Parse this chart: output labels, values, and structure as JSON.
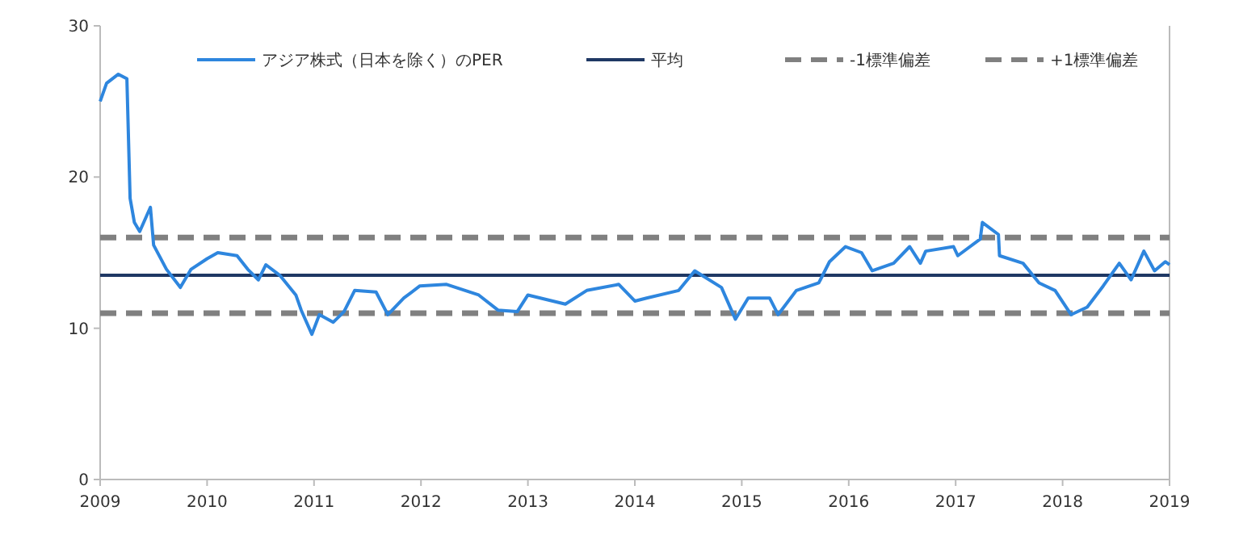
{
  "chart_data": {
    "type": "line",
    "legend": "top",
    "xlim": [
      2009,
      2019
    ],
    "xticks": [
      2009,
      2010,
      2011,
      2012,
      2013,
      2014,
      2015,
      2016,
      2017,
      2018,
      2019
    ],
    "ylim": [
      0,
      30
    ],
    "yticks": [
      0,
      10,
      20,
      30
    ],
    "grid": false,
    "series": [
      {
        "name": "アジア株式（日本を除く）のPER",
        "color": "#2e86de",
        "x": [
          2009.0,
          2009.06,
          2009.17,
          2009.25,
          2009.28,
          2009.32,
          2009.37,
          2009.47,
          2009.5,
          2009.62,
          2009.75,
          2009.85,
          2010.0,
          2010.1,
          2010.28,
          2010.38,
          2010.48,
          2010.55,
          2010.68,
          2010.83,
          2010.88,
          2010.98,
          2011.05,
          2011.18,
          2011.28,
          2011.38,
          2011.58,
          2011.69,
          2011.84,
          2011.99,
          2012.24,
          2012.54,
          2012.72,
          2012.9,
          2013.0,
          2013.35,
          2013.55,
          2013.85,
          2014.0,
          2014.11,
          2014.41,
          2014.56,
          2014.81,
          2014.94,
          2015.06,
          2015.26,
          2015.34,
          2015.51,
          2015.72,
          2015.82,
          2015.97,
          2016.12,
          2016.22,
          2016.42,
          2016.57,
          2016.67,
          2016.72,
          2016.98,
          2017.02,
          2017.23,
          2017.25,
          2017.4,
          2017.41,
          2017.63,
          2017.78,
          2017.93,
          2018.08,
          2018.23,
          2018.38,
          2018.53,
          2018.64,
          2018.76,
          2018.86,
          2018.96,
          2019.0
        ],
        "values": [
          25.0,
          26.2,
          26.8,
          26.5,
          18.6,
          17.0,
          16.4,
          18.0,
          15.5,
          13.9,
          12.7,
          13.9,
          14.6,
          15.0,
          14.8,
          13.9,
          13.2,
          14.2,
          13.5,
          12.2,
          11.2,
          9.6,
          10.9,
          10.4,
          11.1,
          12.5,
          12.4,
          10.9,
          12.0,
          12.8,
          12.9,
          12.2,
          11.2,
          11.1,
          12.2,
          11.6,
          12.5,
          12.9,
          11.8,
          12.0,
          12.5,
          13.8,
          12.7,
          10.6,
          12.0,
          12.0,
          10.9,
          12.5,
          13.0,
          14.4,
          15.4,
          15.0,
          13.8,
          14.3,
          15.4,
          14.3,
          15.1,
          15.4,
          14.8,
          15.9,
          17.0,
          16.2,
          14.8,
          14.3,
          13.0,
          12.5,
          10.9,
          11.4,
          12.8,
          14.3,
          13.2,
          15.1,
          13.8,
          14.4,
          14.2
        ]
      }
    ],
    "ref_lines": [
      {
        "axis": "y",
        "value": 13.5,
        "label": "平均",
        "color": "#1f3864",
        "line_style": "solid"
      },
      {
        "axis": "y",
        "value": 11,
        "label": "-1標準偏差",
        "color": "#808080",
        "line_style": "dashed"
      },
      {
        "axis": "y",
        "value": 16,
        "label": "+1標準偏差",
        "color": "#808080",
        "line_style": "dashed"
      }
    ]
  }
}
